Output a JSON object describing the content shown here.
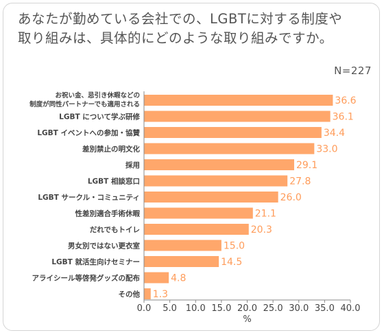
{
  "title_line1": "あなたが勤めている会社での、LGBTに対する制度や",
  "title_line2": "取り組みは、具体的にどのような取り組みですか。",
  "n_label": "N=227",
  "colors": {
    "bar": "#ffa76b",
    "value_text": "#ff9c5a",
    "text": "#444444",
    "axis": "#888888"
  },
  "chart_data": {
    "type": "bar",
    "orientation": "horizontal",
    "categories": [
      [
        "お祝い金、忌引き休暇などの",
        "制度が同性パートナーでも適用される"
      ],
      [
        "LGBT について学ぶ研修"
      ],
      [
        "LGBT イベントへの参加・協賛"
      ],
      [
        "差別禁止の明文化"
      ],
      [
        "採用"
      ],
      [
        "LGBT 相談窓口"
      ],
      [
        "LGBT サークル・コミュニティ"
      ],
      [
        "性差別適合手術休暇"
      ],
      [
        "だれでもトイレ"
      ],
      [
        "男女別ではない更衣室"
      ],
      [
        "LGBT 就活生向けセミナー"
      ],
      [
        "アライシール等啓発グッズの配布"
      ],
      [
        "その他"
      ]
    ],
    "values": [
      36.6,
      36.1,
      34.4,
      33.0,
      29.1,
      27.8,
      26.0,
      21.1,
      20.3,
      15.0,
      14.5,
      4.8,
      1.3
    ],
    "value_labels": [
      "36.6",
      "36.1",
      "34.4",
      "33.0",
      "29.1",
      "27.8",
      "26.0",
      "21.1",
      "20.3",
      "15.0",
      "14.5",
      "4.8",
      "1.3"
    ],
    "xlabel": "%",
    "xlim": [
      0,
      40
    ],
    "xticks": [
      "0.0",
      "5.0",
      "10.0",
      "15.0",
      "20.0",
      "25.0",
      "30.0",
      "35.0",
      "40.0"
    ],
    "xtick_values": [
      0,
      5,
      10,
      15,
      20,
      25,
      30,
      35,
      40
    ],
    "grid": false,
    "legend": "none"
  }
}
